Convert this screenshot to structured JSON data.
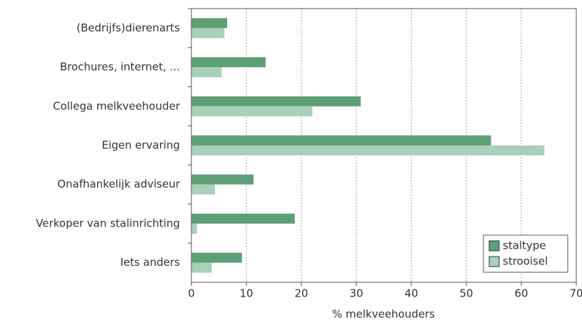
{
  "chart_data": {
    "type": "barh",
    "categories": [
      "(Bedrijfs)dierenarts",
      "Brochures, internet, ...",
      "Collega melkveehouder",
      "Eigen ervaring",
      "Onafhankelijk adviseur",
      "Verkoper van stalinrichting",
      "Iets anders"
    ],
    "series": [
      {
        "name": "staltype",
        "color": "#5e9f78",
        "values": [
          6.5,
          13.5,
          30.8,
          54.5,
          11.3,
          18.8,
          9.2
        ]
      },
      {
        "name": "strooisel",
        "color": "#a9d0b8",
        "values": [
          6.0,
          5.5,
          22.0,
          64.2,
          4.3,
          1.0,
          3.7
        ]
      }
    ],
    "xlabel": "% melkveehouders",
    "xlim": [
      0,
      70
    ],
    "xticks": [
      0,
      10,
      20,
      30,
      40,
      50,
      60,
      70
    ],
    "grid": true,
    "legend": "lower right"
  }
}
